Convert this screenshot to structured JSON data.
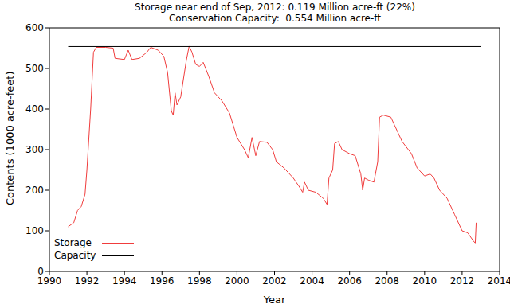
{
  "chart_data": {
    "type": "line",
    "title": "Storage near end of Sep, 2012: 0.119 Million acre-ft (22%)",
    "subtitle": "Conservation Capacity:  0.554 Million acre-ft",
    "x_label": "Year",
    "y_label": "Contents (1000 acre-feet)",
    "xlim": [
      1990,
      2014
    ],
    "xticks": [
      1990,
      1992,
      1994,
      1996,
      1998,
      2000,
      2002,
      2004,
      2006,
      2008,
      2010,
      2012,
      2014
    ],
    "ylim": [
      0,
      600
    ],
    "yticks": [
      0,
      100,
      200,
      300,
      400,
      500,
      600
    ],
    "grid": false,
    "legend": "lower left",
    "series": [
      {
        "name": "Storage",
        "color": "#f03c3c",
        "x": [
          1991.0,
          1991.3,
          1991.5,
          1991.7,
          1991.9,
          1992.0,
          1992.2,
          1992.35,
          1992.5,
          1993.0,
          1993.4,
          1993.5,
          1994.0,
          1994.2,
          1994.4,
          1994.8,
          1995.2,
          1995.4,
          1995.8,
          1996.1,
          1996.3,
          1996.5,
          1996.6,
          1996.7,
          1996.8,
          1997.0,
          1997.3,
          1997.45,
          1997.6,
          1997.8,
          1998.0,
          1998.2,
          1998.5,
          1998.8,
          1999.2,
          1999.6,
          2000.0,
          2000.4,
          2000.6,
          2000.8,
          2001.0,
          2001.2,
          2001.6,
          2001.9,
          2002.1,
          2002.5,
          2003.0,
          2003.3,
          2003.5,
          2003.6,
          2003.8,
          2004.2,
          2004.6,
          2004.8,
          2004.9,
          2005.1,
          2005.2,
          2005.4,
          2005.6,
          2006.0,
          2006.3,
          2006.6,
          2006.7,
          2006.8,
          2007.0,
          2007.3,
          2007.5,
          2007.6,
          2007.8,
          2008.2,
          2008.4,
          2008.8,
          2009.3,
          2009.6,
          2010.0,
          2010.3,
          2010.5,
          2010.8,
          2011.2,
          2011.6,
          2012.0,
          2012.3,
          2012.6,
          2012.7,
          2012.75
        ],
        "values": [
          110,
          120,
          150,
          160,
          190,
          250,
          400,
          540,
          552,
          552,
          550,
          525,
          522,
          545,
          522,
          525,
          540,
          552,
          545,
          530,
          490,
          395,
          385,
          440,
          410,
          430,
          520,
          555,
          540,
          510,
          505,
          515,
          480,
          440,
          420,
          390,
          330,
          300,
          280,
          330,
          285,
          320,
          318,
          300,
          270,
          255,
          230,
          210,
          195,
          220,
          200,
          195,
          180,
          165,
          230,
          250,
          315,
          320,
          300,
          290,
          285,
          240,
          200,
          230,
          225,
          220,
          270,
          380,
          385,
          380,
          360,
          320,
          290,
          255,
          235,
          240,
          230,
          200,
          180,
          140,
          100,
          95,
          75,
          70,
          120
        ]
      },
      {
        "name": "Capacity",
        "color": "#000000",
        "x": [
          1991,
          2013
        ],
        "values": [
          554,
          554
        ]
      }
    ]
  }
}
